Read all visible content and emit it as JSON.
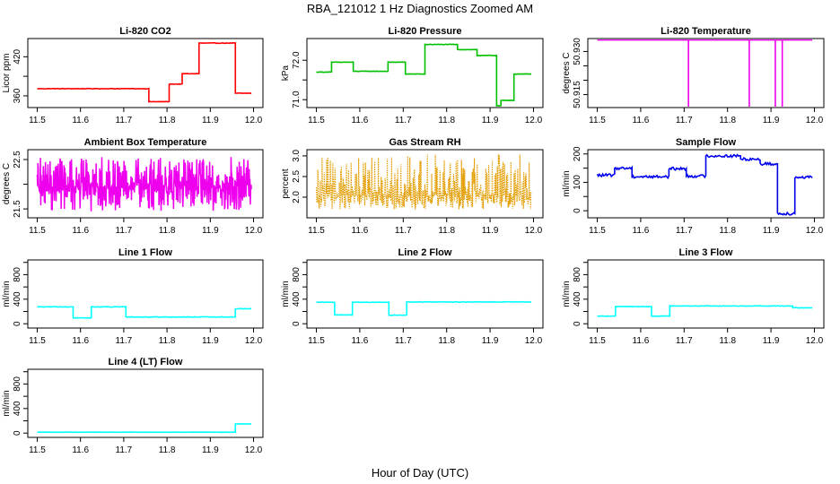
{
  "figure": {
    "title": "RBA_121012  1 Hz Diagnostics Zoomed AM",
    "xlabel": "Hour of Day (UTC)"
  },
  "chart_data": [
    {
      "id": "co2",
      "type": "line",
      "title": "Li-820 CO2",
      "ylabel": "Licor ppm",
      "color": "#ff0000",
      "xlim": [
        11.5,
        12.0
      ],
      "ylim": [
        342,
        448
      ],
      "xticks": [
        11.5,
        11.6,
        11.7,
        11.8,
        11.9,
        12.0
      ],
      "yticks": [
        360,
        390,
        420
      ],
      "ytick_labels": [
        "360",
        "",
        "420"
      ],
      "noise": 0.4,
      "segments": [
        [
          11.5,
          11.758,
          371
        ],
        [
          11.758,
          11.805,
          351
        ],
        [
          11.805,
          11.835,
          378
        ],
        [
          11.835,
          11.874,
          394
        ],
        [
          11.874,
          11.958,
          441
        ],
        [
          11.958,
          11.995,
          364
        ]
      ]
    },
    {
      "id": "pressure",
      "type": "line",
      "title": "Li-820 Pressure",
      "ylabel": "kPa",
      "color": "#00c000",
      "xlim": [
        11.5,
        12.0
      ],
      "ylim": [
        70.8,
        72.55
      ],
      "xticks": [
        11.5,
        11.6,
        11.7,
        11.8,
        11.9,
        12.0
      ],
      "yticks": [
        71.0,
        71.5,
        72.0
      ],
      "ytick_labels": [
        "71.0",
        "",
        "72.0"
      ],
      "noise": 0.006,
      "segments": [
        [
          11.5,
          11.535,
          71.7
        ],
        [
          11.535,
          11.585,
          71.95
        ],
        [
          11.585,
          11.665,
          71.72
        ],
        [
          11.665,
          11.705,
          71.95
        ],
        [
          11.705,
          11.75,
          71.65
        ],
        [
          11.75,
          11.825,
          72.4
        ],
        [
          11.825,
          11.87,
          72.27
        ],
        [
          11.87,
          11.915,
          72.12
        ],
        [
          11.915,
          11.925,
          70.85
        ],
        [
          11.925,
          11.955,
          70.98
        ],
        [
          11.955,
          11.995,
          71.65
        ]
      ]
    },
    {
      "id": "temperature",
      "type": "line",
      "title": "Li-820 Temperature",
      "ylabel": "degrees C",
      "color": "#ee00ee",
      "xlim": [
        11.5,
        12.0
      ],
      "ylim": [
        50.9105,
        50.9345
      ],
      "xticks": [
        11.5,
        11.6,
        11.7,
        11.8,
        11.9,
        12.0
      ],
      "yticks": [
        50.915,
        50.92,
        50.925,
        50.93
      ],
      "ytick_labels": [
        "50.915",
        "",
        "",
        "50.930"
      ],
      "noise": 0,
      "segments": [
        [
          11.5,
          11.995,
          50.934
        ]
      ],
      "spikes": [
        11.71,
        11.85,
        11.91,
        11.926
      ],
      "spike_min": 50.9105
    },
    {
      "id": "ambient",
      "type": "line",
      "title": "Ambient Box Temperature",
      "ylabel": "degrees C",
      "color": "#ee00ee",
      "xlim": [
        11.5,
        12.0
      ],
      "ylim": [
        21.32,
        22.7
      ],
      "xticks": [
        11.5,
        11.6,
        11.7,
        11.8,
        11.9,
        12.0
      ],
      "yticks": [
        21.5,
        22.0,
        22.5
      ],
      "ytick_labels": [
        "21.5",
        "",
        "22.5"
      ],
      "noise_lo": 21.45,
      "noise_hi": 22.55,
      "noise_center": 21.95
    },
    {
      "id": "rh",
      "type": "scatter",
      "title": "Gas Stream RH",
      "ylabel": "percent",
      "color": "#e39d00",
      "xlim": [
        11.5,
        12.0
      ],
      "ylim": [
        1.5,
        3.15
      ],
      "xticks": [
        11.5,
        11.6,
        11.7,
        11.8,
        11.9,
        12.0
      ],
      "yticks": [
        2.0,
        2.5,
        3.0
      ],
      "ytick_labels": [
        "2.0",
        "2.5",
        "3.0"
      ],
      "noise_lo": 1.7,
      "noise_hi": 3.05,
      "noise_center": 2.05
    },
    {
      "id": "sample",
      "type": "line",
      "title": "Sample Flow",
      "ylabel": "ml/min",
      "color": "#0000ee",
      "xlim": [
        11.5,
        12.0
      ],
      "ylim": [
        -25,
        215
      ],
      "xticks": [
        11.5,
        11.6,
        11.7,
        11.8,
        11.9,
        12.0
      ],
      "yticks": [
        0,
        50,
        100,
        150,
        200
      ],
      "ytick_labels": [
        "0",
        "",
        "100",
        "",
        "200"
      ],
      "noise": 5,
      "segments": [
        [
          11.5,
          11.54,
          125
        ],
        [
          11.54,
          11.58,
          150
        ],
        [
          11.58,
          11.665,
          120
        ],
        [
          11.665,
          11.705,
          148
        ],
        [
          11.705,
          11.75,
          122
        ],
        [
          11.75,
          11.83,
          193
        ],
        [
          11.83,
          11.875,
          182
        ],
        [
          11.875,
          11.915,
          165
        ],
        [
          11.915,
          11.955,
          -10
        ],
        [
          11.955,
          11.995,
          118
        ]
      ]
    },
    {
      "id": "line1",
      "type": "line",
      "title": "Line 1 Flow",
      "ylabel": "ml/min",
      "color": "#00ffff",
      "xlim": [
        11.5,
        12.0
      ],
      "ylim": [
        -70,
        1040
      ],
      "xticks": [
        11.5,
        11.6,
        11.7,
        11.8,
        11.9,
        12.0
      ],
      "yticks": [
        0,
        200,
        400,
        600,
        800,
        1000
      ],
      "ytick_labels": [
        "0",
        "",
        "400",
        "",
        "800",
        ""
      ],
      "noise": 4,
      "segments": [
        [
          11.5,
          11.583,
          275
        ],
        [
          11.583,
          11.625,
          95
        ],
        [
          11.625,
          11.705,
          275
        ],
        [
          11.705,
          11.958,
          110
        ],
        [
          11.958,
          11.995,
          245
        ]
      ]
    },
    {
      "id": "line2",
      "type": "line",
      "title": "Line 2 Flow",
      "ylabel": "ml/min",
      "color": "#00ffff",
      "xlim": [
        11.5,
        12.0
      ],
      "ylim": [
        -70,
        1040
      ],
      "xticks": [
        11.5,
        11.6,
        11.7,
        11.8,
        11.9,
        12.0
      ],
      "yticks": [
        0,
        200,
        400,
        600,
        800,
        1000
      ],
      "ytick_labels": [
        "0",
        "",
        "400",
        "",
        "800",
        ""
      ],
      "noise": 4,
      "segments": [
        [
          11.5,
          11.542,
          350
        ],
        [
          11.542,
          11.583,
          145
        ],
        [
          11.583,
          11.667,
          350
        ],
        [
          11.667,
          11.708,
          140
        ],
        [
          11.708,
          11.995,
          355
        ]
      ]
    },
    {
      "id": "line3",
      "type": "line",
      "title": "Line 3 Flow",
      "ylabel": "ml/min",
      "color": "#00ffff",
      "xlim": [
        11.5,
        12.0
      ],
      "ylim": [
        -70,
        1040
      ],
      "xticks": [
        11.5,
        11.6,
        11.7,
        11.8,
        11.9,
        12.0
      ],
      "yticks": [
        0,
        200,
        400,
        600,
        800,
        1000
      ],
      "ytick_labels": [
        "0",
        "",
        "400",
        "",
        "800",
        ""
      ],
      "noise": 4,
      "segments": [
        [
          11.5,
          11.542,
          125
        ],
        [
          11.542,
          11.625,
          280
        ],
        [
          11.625,
          11.667,
          125
        ],
        [
          11.667,
          11.95,
          290
        ],
        [
          11.95,
          11.995,
          260
        ]
      ]
    },
    {
      "id": "line4",
      "type": "line",
      "title": "Line 4 (LT) Flow",
      "ylabel": "ml/min",
      "color": "#00ffff",
      "xlim": [
        11.5,
        12.0
      ],
      "ylim": [
        -70,
        1040
      ],
      "xticks": [
        11.5,
        11.6,
        11.7,
        11.8,
        11.9,
        12.0
      ],
      "yticks": [
        0,
        200,
        400,
        600,
        800,
        1000
      ],
      "ytick_labels": [
        "0",
        "",
        "400",
        "",
        "800",
        ""
      ],
      "noise": 2,
      "segments": [
        [
          11.5,
          11.958,
          15
        ],
        [
          11.958,
          11.995,
          150
        ]
      ]
    }
  ]
}
